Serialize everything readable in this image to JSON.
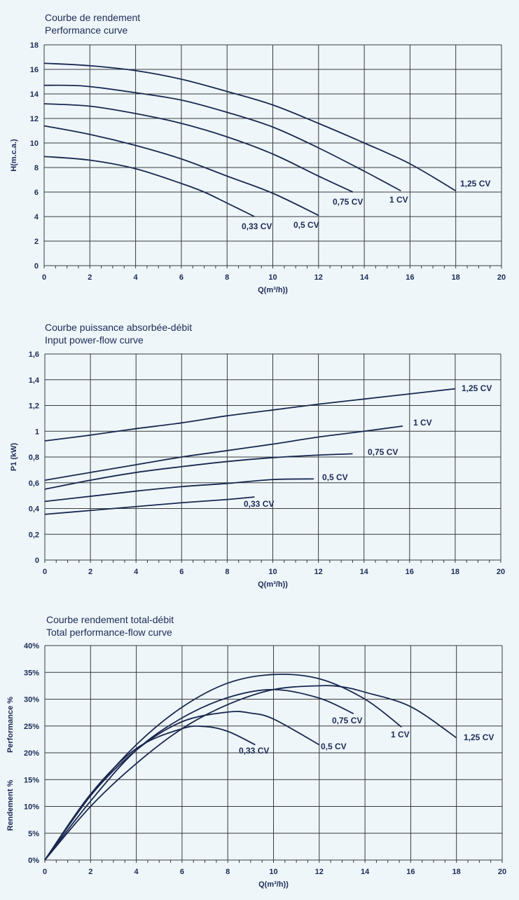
{
  "colors": {
    "background": "#eef6fa",
    "curve": "#1a2850",
    "text": "#1d2a55",
    "grid": "#3a3a3a"
  },
  "chart_data": [
    {
      "type": "line",
      "title": "Courbe de rendement",
      "subtitle": "Performance curve",
      "xlabel": "Q(m³/h))",
      "ylabel": "H(m.c.a.)",
      "xlim": [
        0,
        20
      ],
      "ylim": [
        0,
        18
      ],
      "xticks": [
        "0",
        "2",
        "4",
        "6",
        "8",
        "10",
        "12",
        "14",
        "16",
        "18",
        "20"
      ],
      "yticks": [
        "0",
        "2",
        "4",
        "6",
        "8",
        "10",
        "12",
        "14",
        "16",
        "18"
      ],
      "grid": true,
      "series": [
        {
          "name": "1,25 CV",
          "x": [
            0,
            2,
            4,
            6,
            8,
            10,
            12,
            14,
            16,
            18
          ],
          "y": [
            16.5,
            16.3,
            15.9,
            15.2,
            14.2,
            13.1,
            11.6,
            10.0,
            8.3,
            6.1
          ]
        },
        {
          "name": "1 CV",
          "x": [
            0,
            1,
            2,
            4,
            6,
            8,
            10,
            12,
            14,
            15.6
          ],
          "y": [
            14.7,
            14.7,
            14.6,
            14.1,
            13.5,
            12.5,
            11.3,
            9.6,
            7.7,
            6.1
          ]
        },
        {
          "name": "0,75 CV",
          "x": [
            0,
            2,
            4,
            6,
            8,
            10,
            12,
            13.5
          ],
          "y": [
            13.2,
            13.0,
            12.4,
            11.6,
            10.5,
            9.1,
            7.3,
            6.0
          ]
        },
        {
          "name": "0,5 CV",
          "x": [
            0,
            2,
            4,
            6,
            8,
            10,
            12
          ],
          "y": [
            11.4,
            10.7,
            9.8,
            8.7,
            7.3,
            5.9,
            4.1
          ]
        },
        {
          "name": "0,33 CV",
          "x": [
            0,
            2,
            4,
            6,
            7,
            8,
            9.2
          ],
          "y": [
            8.9,
            8.6,
            7.9,
            6.7,
            6.0,
            5.1,
            4.0
          ]
        }
      ]
    },
    {
      "type": "line",
      "title": "Courbe puissance absorbée-débit",
      "subtitle": "Input power-flow curve",
      "xlabel": "Q(m³/h))",
      "ylabel": "P1 (kW)",
      "xlim": [
        0,
        20
      ],
      "ylim": [
        0,
        1.6
      ],
      "xticks": [
        "0",
        "2",
        "4",
        "6",
        "8",
        "10",
        "12",
        "14",
        "16",
        "18",
        "20"
      ],
      "yticks": [
        "0",
        "0,2",
        "0,4",
        "0,6",
        "0,8",
        "1",
        "1,2",
        "1,4",
        "1,6"
      ],
      "grid": true,
      "series": [
        {
          "name": "1,25 CV",
          "x": [
            0,
            2,
            4,
            6,
            8,
            10,
            12,
            14,
            16,
            18
          ],
          "y": [
            0.925,
            0.97,
            1.02,
            1.065,
            1.12,
            1.165,
            1.21,
            1.25,
            1.29,
            1.33
          ]
        },
        {
          "name": "1 CV",
          "x": [
            0,
            2,
            4,
            6,
            8,
            10,
            12,
            14,
            15.7
          ],
          "y": [
            0.62,
            0.68,
            0.74,
            0.8,
            0.85,
            0.9,
            0.955,
            1.0,
            1.04
          ]
        },
        {
          "name": "0,75 CV",
          "x": [
            0,
            2,
            4,
            6,
            8,
            10,
            12,
            13.5
          ],
          "y": [
            0.55,
            0.62,
            0.68,
            0.725,
            0.765,
            0.795,
            0.815,
            0.825
          ]
        },
        {
          "name": "0,5 CV",
          "x": [
            0,
            2,
            4,
            6,
            8,
            10,
            11.8
          ],
          "y": [
            0.455,
            0.495,
            0.535,
            0.57,
            0.595,
            0.625,
            0.63
          ]
        },
        {
          "name": "0,33 CV",
          "x": [
            0,
            2,
            4,
            6,
            8,
            9.2
          ],
          "y": [
            0.355,
            0.385,
            0.415,
            0.445,
            0.47,
            0.49
          ]
        }
      ]
    },
    {
      "type": "line",
      "title": "Courbe rendement total-débit",
      "subtitle": "Total performance-flow curve",
      "xlabel": "Q(m³/h))",
      "ylabel": "Rendement %",
      "ylabel2": "Performance %",
      "xlim": [
        0,
        20
      ],
      "ylim": [
        0,
        40
      ],
      "xticks": [
        "0",
        "2",
        "4",
        "6",
        "8",
        "10",
        "12",
        "14",
        "16",
        "18",
        "20"
      ],
      "yticks": [
        "0%",
        "5%",
        "10%",
        "15%",
        "20%",
        "25%",
        "30%",
        "35%",
        "40%"
      ],
      "grid": true,
      "series": [
        {
          "name": "1,25 CV",
          "x": [
            0,
            2,
            4,
            6,
            8,
            10,
            12,
            13,
            14,
            16,
            18
          ],
          "y": [
            0,
            10,
            18,
            24.5,
            29,
            31.8,
            32.5,
            32.3,
            31.3,
            28.6,
            22.8
          ]
        },
        {
          "name": "1 CV",
          "x": [
            0,
            2,
            4,
            6,
            8,
            10,
            12,
            14,
            15.6
          ],
          "y": [
            0,
            12,
            21.5,
            28.5,
            33,
            34.6,
            33.8,
            30,
            24.8
          ]
        },
        {
          "name": "0,75 CV",
          "x": [
            0,
            2,
            4,
            6,
            8,
            10,
            12,
            13.5
          ],
          "y": [
            0,
            11,
            20.5,
            26.5,
            30.3,
            31.8,
            30.2,
            27.3
          ]
        },
        {
          "name": "0,5 CV",
          "x": [
            0,
            2,
            4,
            6,
            8,
            9,
            10,
            12
          ],
          "y": [
            0,
            12,
            20.5,
            25.8,
            27.6,
            27.4,
            26.3,
            21.5
          ]
        },
        {
          "name": "0,33 CV",
          "x": [
            0,
            2,
            4,
            6,
            7,
            8,
            9.2
          ],
          "y": [
            0,
            12.3,
            20.8,
            24.5,
            24.9,
            24,
            21.5
          ]
        }
      ]
    }
  ]
}
